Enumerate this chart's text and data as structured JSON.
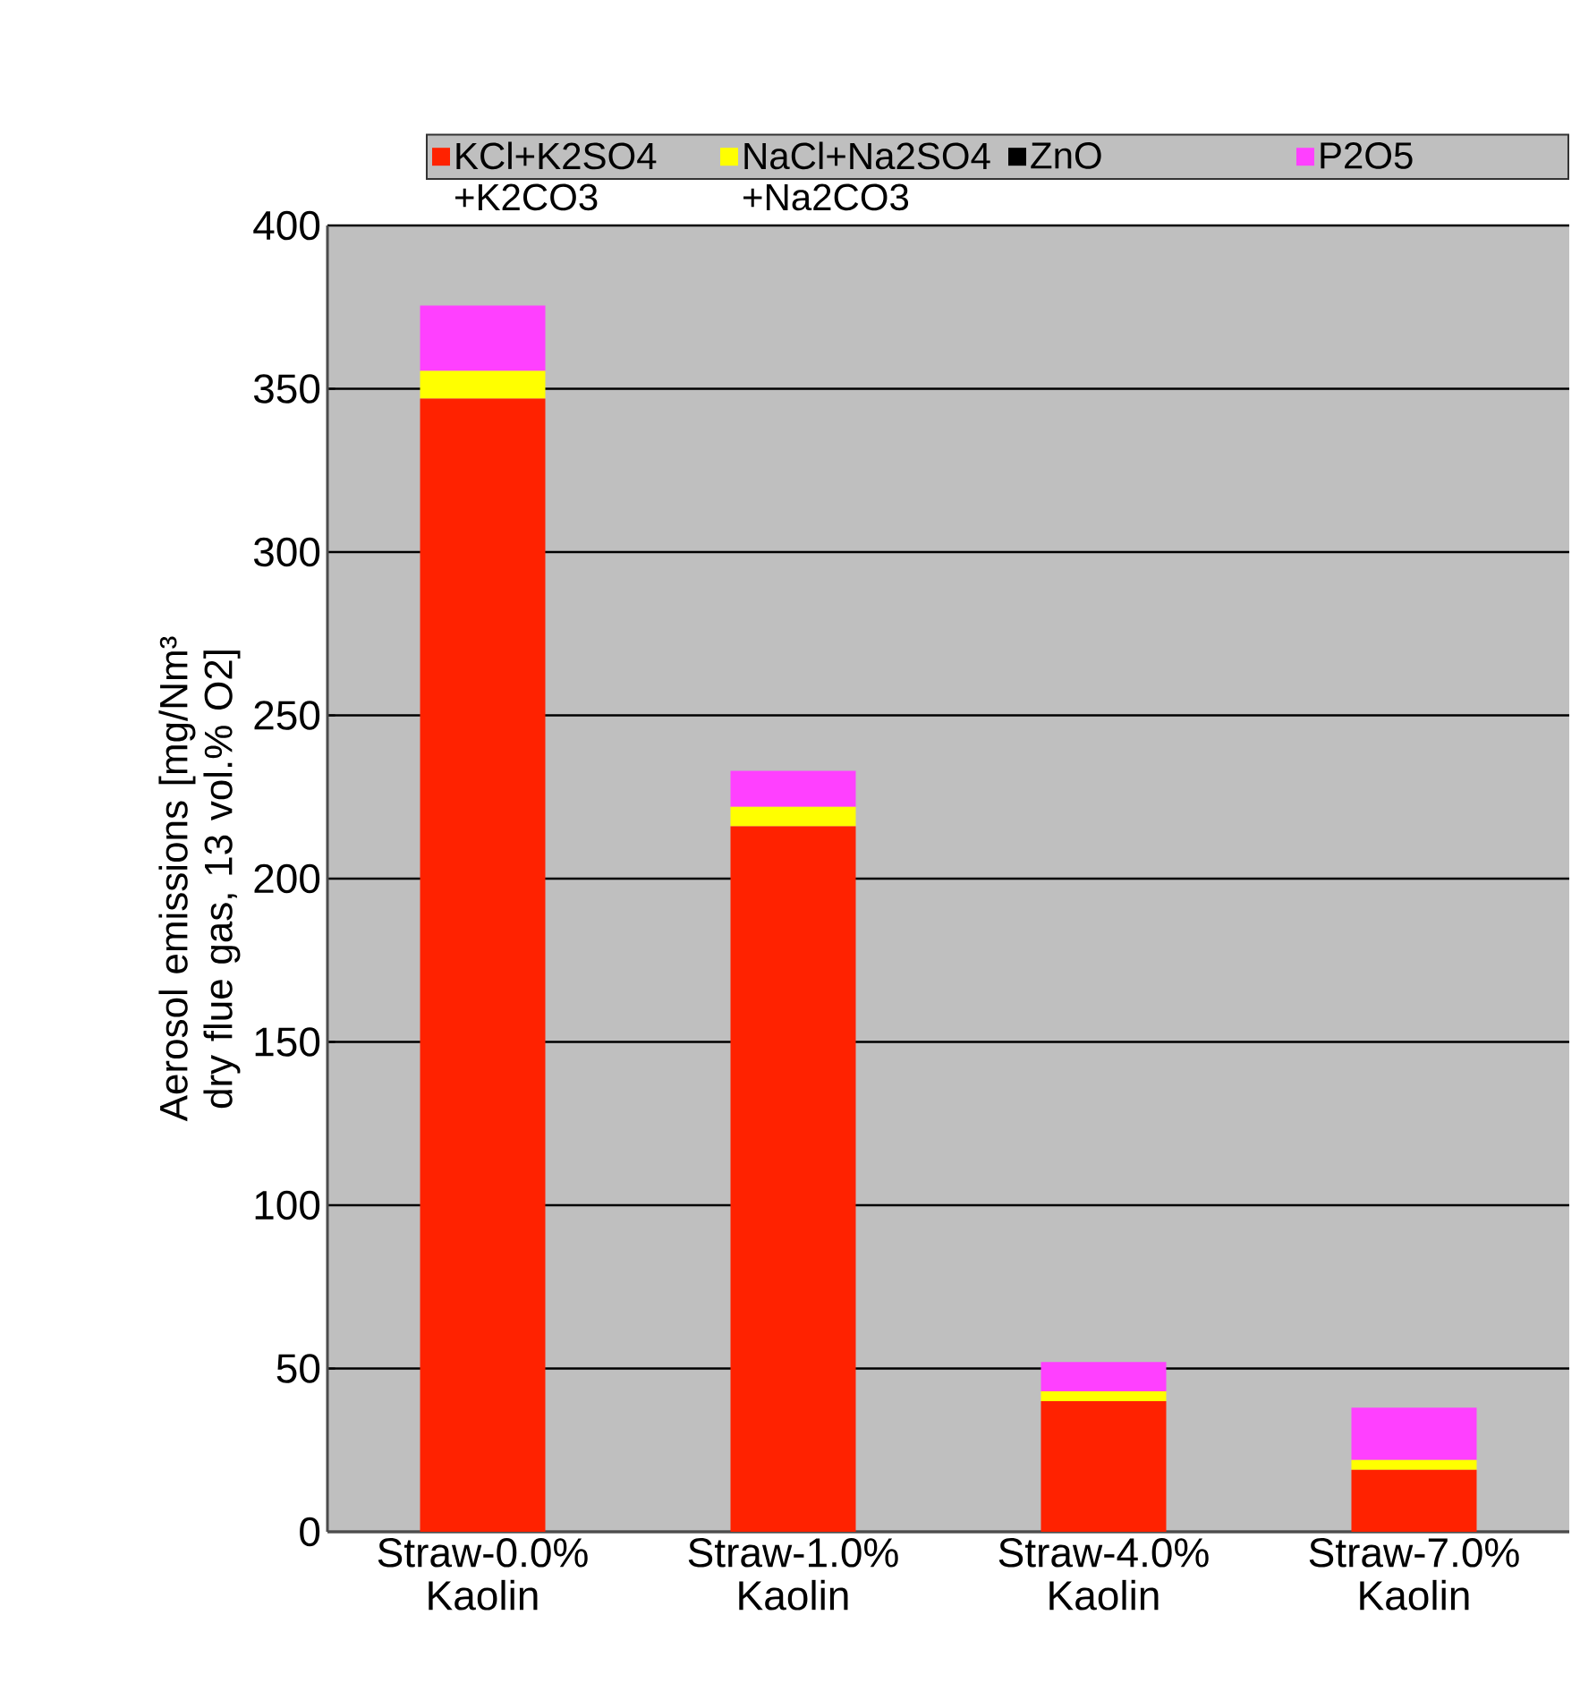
{
  "chart_data": {
    "type": "bar",
    "stacked": true,
    "ylabel": "Aerosol emissions [mg/Nm³ dry flue gas, 13 vol.% O2]",
    "categories": [
      "Straw-0.0% Kaolin",
      "Straw-1.0% Kaolin",
      "Straw-4.0% Kaolin",
      "Straw-7.0% Kaolin"
    ],
    "series": [
      {
        "name": "KCl+K2SO4 +K2CO3",
        "color": "#ff2200",
        "values": [
          347,
          216,
          40,
          19
        ]
      },
      {
        "name": "NaCl+Na2SO4 +Na2CO3",
        "color": "#ffff00",
        "values": [
          8.5,
          6,
          3,
          3
        ]
      },
      {
        "name": "ZnO",
        "color": "#000000",
        "values": [
          0,
          0,
          0,
          0
        ]
      },
      {
        "name": "P2O5",
        "color": "#ff40ff",
        "values": [
          20,
          11,
          9,
          16
        ]
      }
    ],
    "ylim": [
      0,
      400
    ],
    "yticks": [
      0,
      50,
      100,
      150,
      200,
      250,
      300,
      350,
      400
    ],
    "grid": "y",
    "legend": "top"
  }
}
